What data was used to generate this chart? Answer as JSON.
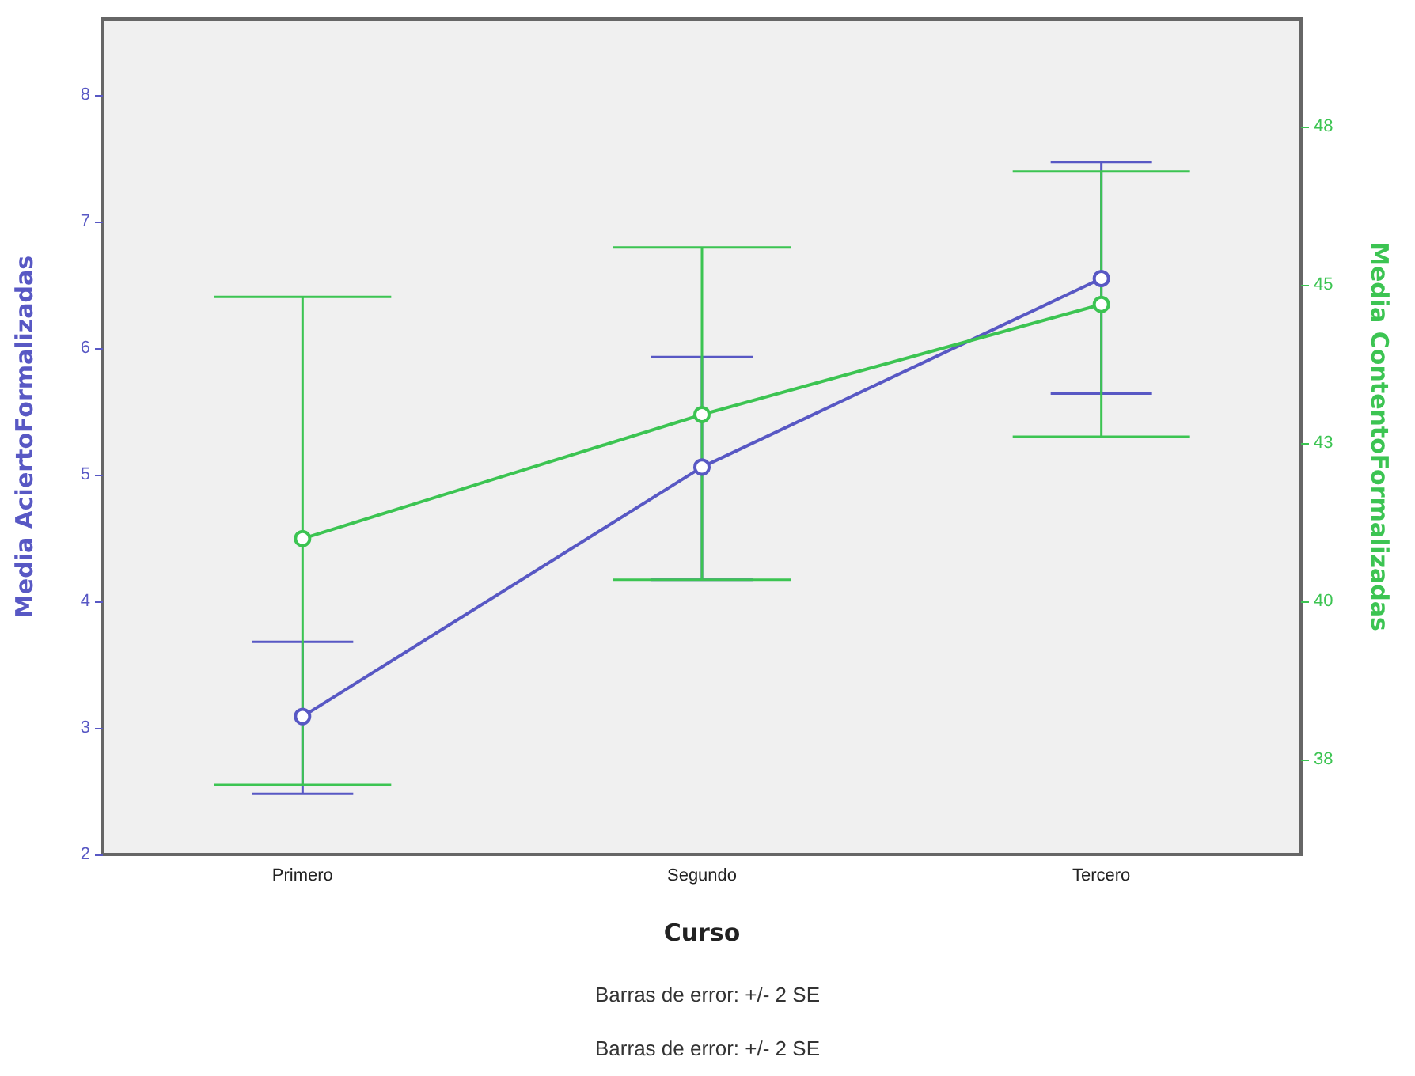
{
  "chart_data": {
    "type": "line",
    "xlabel": "Curso",
    "ylabel": "Media AciertoFormalizadas",
    "y2label": "Media ContentoFormalizadas",
    "categories": [
      "Primero",
      "Segundo",
      "Tercero"
    ],
    "series": [
      {
        "color": "#5858c4",
        "values": [
          3.09,
          5.06,
          6.55
        ],
        "errors": [
          [
            2.48,
            3.68
          ],
          [
            4.17,
            5.93
          ],
          [
            5.64,
            7.47
          ]
        ]
      },
      {
        "color": "#3cc452",
        "axis": "y2",
        "values": [
          40.99,
          42.95,
          44.69
        ],
        "errors": [
          [
            37.1,
            44.81
          ],
          [
            40.34,
            45.59
          ],
          [
            42.6,
            46.79
          ]
        ]
      }
    ],
    "ylim": [
      2,
      8.6
    ],
    "yticks": [
      2,
      3,
      4,
      5,
      6,
      7,
      8
    ],
    "y2lim": [
      36,
      49.2
    ],
    "y2ticks": [
      {
        "value": 37.5,
        "label": "38"
      },
      {
        "value": 40,
        "label": "40"
      },
      {
        "value": 42.5,
        "label": "43"
      },
      {
        "value": 45,
        "label": "45"
      },
      {
        "value": 47.5,
        "label": "48"
      }
    ],
    "marker": "circle",
    "line_style": "solid",
    "grid": false,
    "annotations": [
      "Barras de error: +/- 2 SE",
      "Barras de error: +/- 2 SE"
    ]
  }
}
